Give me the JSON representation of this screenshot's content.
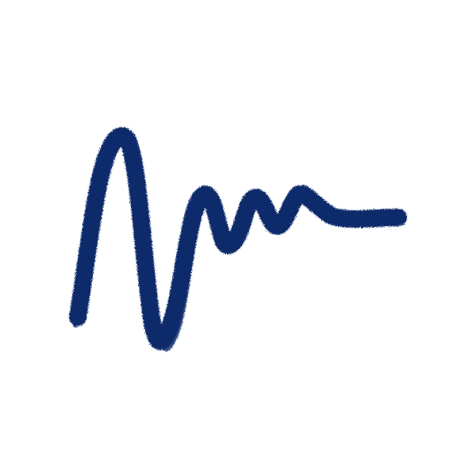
{
  "image": {
    "background_color": "#ffffff",
    "stroke_color": "#0b2a6b",
    "subject": "damped-oscillation-brush-stroke",
    "icon": "wave-stroke-icon"
  }
}
